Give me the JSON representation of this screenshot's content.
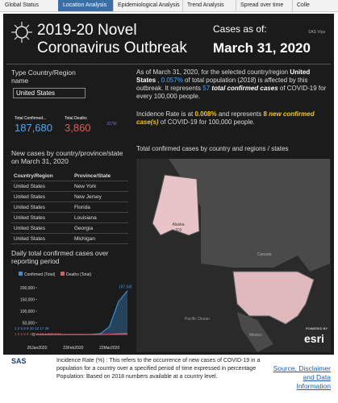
{
  "tabs": [
    "Global Status",
    "Location Analysis",
    "Epidemiological Analysis",
    "Trend Analysis",
    "Spread over time",
    "Colle"
  ],
  "active_tab": 1,
  "header": {
    "title_line1": "2019-20 Novel",
    "title_line2": "Coronavirus Outbreak",
    "as_of_label": "Cases as of:",
    "as_of_date": "March 31, 2020",
    "brand": "SAS Viya"
  },
  "filter": {
    "label": "Type Country/Region name",
    "value": "United States"
  },
  "kpis": {
    "confirmed_label": "Total Confirmed...",
    "confirmed": "187,680",
    "deaths_label": "Total Deaths",
    "deaths": "3,860",
    "population": "327M"
  },
  "new_cases": {
    "title": "New cases by country/province/state on March 31, 2020",
    "columns": [
      "Country/Region",
      "Province/State"
    ],
    "rows": [
      [
        "United States",
        "New York"
      ],
      [
        "United States",
        "New Jersey"
      ],
      [
        "United States",
        "Florida"
      ],
      [
        "United States",
        "Louisiana"
      ],
      [
        "United States",
        "Georgia"
      ],
      [
        "United States",
        "Michigan"
      ]
    ]
  },
  "summary": {
    "p1": [
      {
        "text": "As of March 31, 2020, for the selected country/region ",
        "style": "plain"
      },
      {
        "text": "United States",
        "style": "bold"
      },
      {
        "text": " , ",
        "style": "plain"
      },
      {
        "text": "0.057%",
        "style": "blue"
      },
      {
        "text": " of total population (",
        "style": "plain"
      },
      {
        "text": "2018",
        "style": "italic"
      },
      {
        "text": ") is affected by this outbreak. It represents ",
        "style": "plain"
      },
      {
        "text": "57",
        "style": "blue"
      },
      {
        "text": " ",
        "style": "plain"
      },
      {
        "text": "total confirmed cases",
        "style": "bolditalic"
      },
      {
        "text": " of COVID-19 for every 100,000 people.",
        "style": "plain"
      }
    ],
    "p2": [
      {
        "text": "Incidence Rate is at ",
        "style": "plain"
      },
      {
        "text": "0.008%",
        "style": "yellow"
      },
      {
        "text": " and represents ",
        "style": "plain"
      },
      {
        "text": "8",
        "style": "yellow"
      },
      {
        "text": " ",
        "style": "plain"
      },
      {
        "text": "new confirmed case(s)",
        "style": "yellowitalic"
      },
      {
        "text": " of COVID-19 for 100,000 people.",
        "style": "plain"
      }
    ]
  },
  "map": {
    "title": "Total confirmed cases by country and regions / states",
    "alaska": "Alaska",
    "alaska_cases": "119",
    "canada": "Canada",
    "ocean": "Pacific Ocean",
    "mexico": "Mexico",
    "powered": "POWERED BY",
    "esri": "esri"
  },
  "footer": {
    "logo": "SAS",
    "note": "Incidence Rate (%) : This refers to the occurrence of new cases of COVID-19 in a population for a country over a specified period of time expressed in percentage Population: Based on 2018 numbers available at a country level.",
    "link": "Source, Disclaimer and Data Information"
  },
  "chart_data": {
    "type": "line",
    "title": "Daily total confirmed cases over reporting period",
    "categories": [
      "26Jan2020",
      null,
      null,
      null,
      "23Feb2020",
      null,
      null,
      null,
      "22Mar2020",
      null,
      null
    ],
    "series": [
      {
        "name": "Confirmed (Total)",
        "color": "#3b8fd6",
        "values": [
          5,
          8,
          12,
          15,
          15,
          70,
          500,
          3500,
          33000,
          140000,
          187680
        ],
        "value_labels": [
          null,
          null,
          null,
          null,
          null,
          null,
          null,
          null,
          null,
          null,
          "187,680"
        ]
      },
      {
        "name": "Deaths (Total)",
        "color": "#e05a5a",
        "values": [
          0,
          0,
          0,
          0,
          0,
          1,
          21,
          68,
          470,
          2500,
          3860
        ]
      }
    ],
    "annotations": [
      "1 2 5 8 9 10 12 17 28",
      "1 5 5 8 9 10 12 18 1,596 544"
    ],
    "ylim": [
      0,
      200000
    ],
    "yticks": [
      0,
      {
        "value": 50000,
        "label": "50,000"
      },
      {
        "value": 100000,
        "label": "100,000"
      },
      {
        "value": 150000,
        "label": "150,000"
      },
      {
        "value": 200000,
        "label": "200,000"
      }
    ],
    "grid": false
  }
}
